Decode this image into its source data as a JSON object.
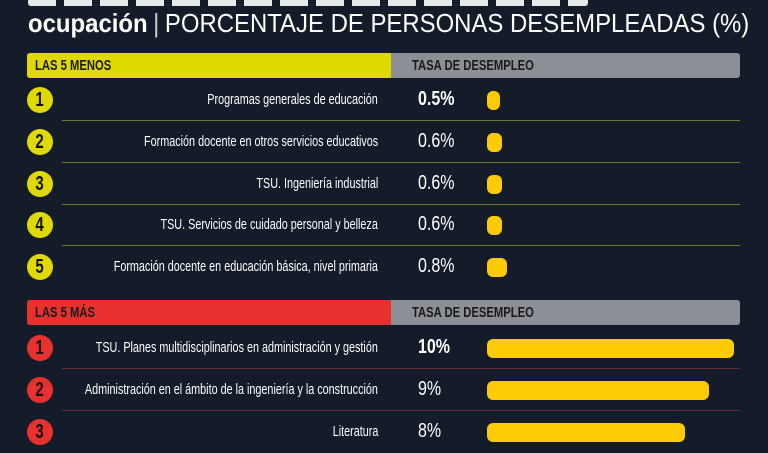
{
  "header": {
    "subtitle_bold": "ocupación",
    "subtitle_rest": "PORCENTAJE DE PERSONAS DESEMPLEADAS (%)"
  },
  "colors": {
    "background": "#131c28",
    "yellow": "#e0d900",
    "red": "#e8312f",
    "bar": "#fccb06",
    "header_gray": "#8c8f95"
  },
  "chart_data": [
    {
      "type": "bar",
      "title": "LAS 5 MENOS",
      "value_header": "TASA DE DESEMPLEO",
      "ranks": [
        "1",
        "2",
        "3",
        "4",
        "5"
      ],
      "categories": [
        "Programas generales de educación",
        "Formación docente en otros servicios educativos",
        "TSU. Ingeniería industrial",
        "TSU. Servicios de cuidado personal y belleza",
        "Formación docente en educación básica, nivel primaria"
      ],
      "values": [
        0.5,
        0.6,
        0.6,
        0.6,
        0.8
      ],
      "labels": [
        "0.5%",
        "0.6%",
        "0.6%",
        "0.6%",
        "0.8%"
      ]
    },
    {
      "type": "bar",
      "title": "LAS 5 MÁS",
      "value_header": "TASA DE DESEMPLEO",
      "ranks": [
        "1",
        "2",
        "3"
      ],
      "categories": [
        "TSU. Planes multidisciplinarios en administración y gestión",
        "Administración en el ámbito de la ingeniería y la construcción",
        "Literatura"
      ],
      "values": [
        10,
        9,
        8
      ],
      "labels": [
        "10%",
        "9%",
        "8%"
      ]
    }
  ]
}
